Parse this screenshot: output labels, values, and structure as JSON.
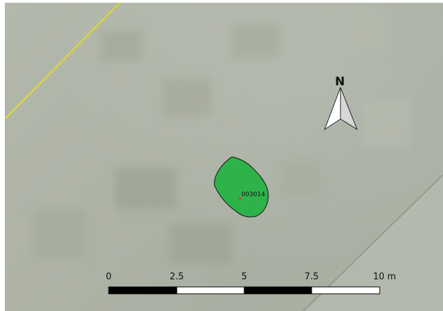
{
  "map": {
    "feature": {
      "id_label": "003014",
      "fill_color": "#2db34a"
    },
    "boundary_line_color": "#d9d63c",
    "north_arrow": {
      "letter": "N"
    },
    "scale_bar": {
      "tick_labels": [
        "0",
        "2.5",
        "5",
        "7.5",
        "10 m"
      ]
    }
  }
}
